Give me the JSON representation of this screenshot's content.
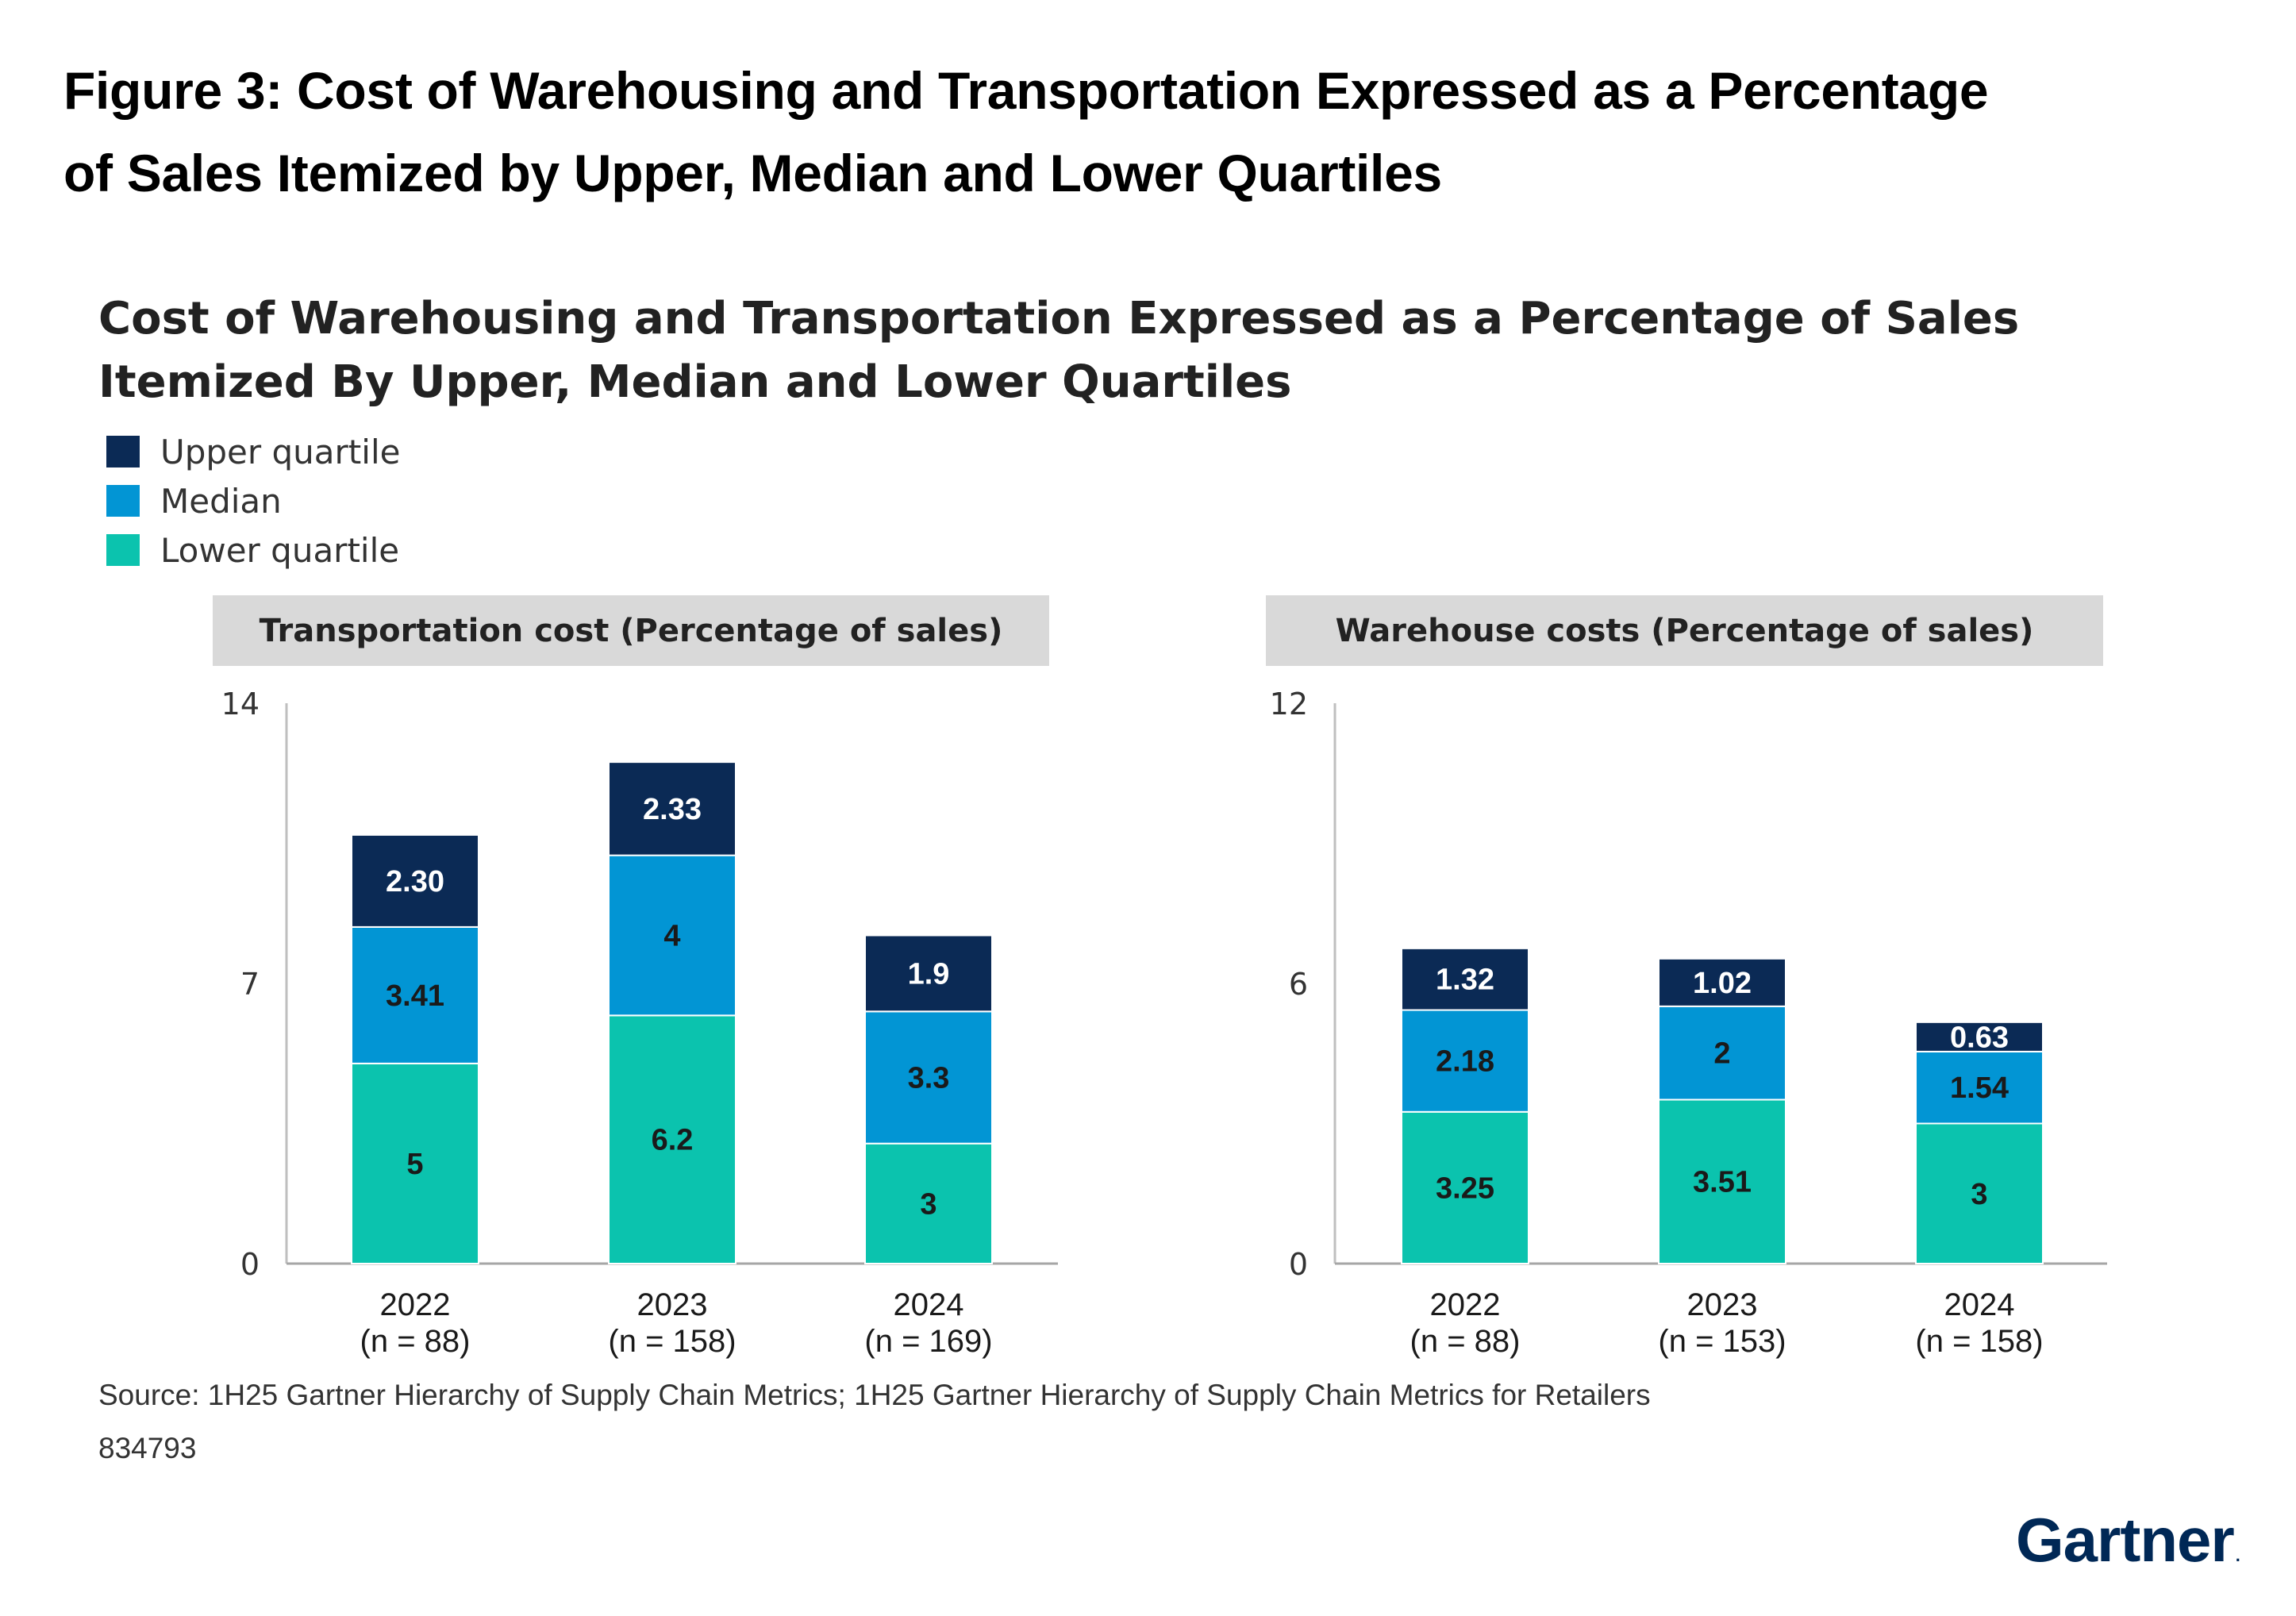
{
  "figure_title": {
    "line1": "Figure 3: Cost of Warehousing and Transportation Expressed as a Percentage",
    "line2": "of Sales Itemized by Upper, Median and Lower Quartiles"
  },
  "chart_title": {
    "line1": "Cost of Warehousing and Transportation Expressed as a Percentage of Sales",
    "line2": "Itemized By Upper, Median and Lower Quartiles"
  },
  "legend": [
    {
      "label": "Upper quartile",
      "color": "#0b2a55"
    },
    {
      "label": "Median",
      "color": "#0295d4"
    },
    {
      "label": "Lower quartile",
      "color": "#0bc3ae"
    }
  ],
  "chart_data": [
    {
      "type": "bar",
      "stacked": true,
      "title": "Transportation cost (Percentage of sales)",
      "categories": [
        "2022",
        "2023",
        "2024"
      ],
      "category_sublabels": [
        "(n = 88)",
        "(n = 158)",
        "(n = 169)"
      ],
      "ylim": [
        0,
        14
      ],
      "yticks": [
        "0",
        "7",
        "14"
      ],
      "series": [
        {
          "name": "Lower quartile",
          "values": [
            5,
            6.2,
            3
          ],
          "labels": [
            "5",
            "6.2",
            "3"
          ]
        },
        {
          "name": "Median",
          "values": [
            3.41,
            4,
            3.3
          ],
          "labels": [
            "3.41",
            "4",
            "3.3"
          ]
        },
        {
          "name": "Upper quartile",
          "values": [
            2.3,
            2.33,
            1.9
          ],
          "labels": [
            "2.30",
            "2.33",
            "1.9"
          ]
        }
      ]
    },
    {
      "type": "bar",
      "stacked": true,
      "title": "Warehouse costs (Percentage of sales)",
      "categories": [
        "2022",
        "2023",
        "2024"
      ],
      "category_sublabels": [
        "(n = 88)",
        "(n = 153)",
        "(n = 158)"
      ],
      "ylim": [
        0,
        12
      ],
      "yticks": [
        "0",
        "6",
        "12"
      ],
      "series": [
        {
          "name": "Lower quartile",
          "values": [
            3.25,
            3.51,
            3
          ],
          "labels": [
            "3.25",
            "3.51",
            "3"
          ]
        },
        {
          "name": "Median",
          "values": [
            2.18,
            2,
            1.54
          ],
          "labels": [
            "2.18",
            "2",
            "1.54"
          ]
        },
        {
          "name": "Upper quartile",
          "values": [
            1.32,
            1.02,
            0.63
          ],
          "labels": [
            "1.32",
            "1.02",
            "0.63"
          ]
        }
      ]
    }
  ],
  "source": "Source: 1H25 Gartner Hierarchy of Supply Chain Metrics; 1H25 Gartner Hierarchy of Supply Chain Metrics for Retailers",
  "doc_id": "834793",
  "brand": {
    "name": "Gartner",
    "mark": "."
  }
}
